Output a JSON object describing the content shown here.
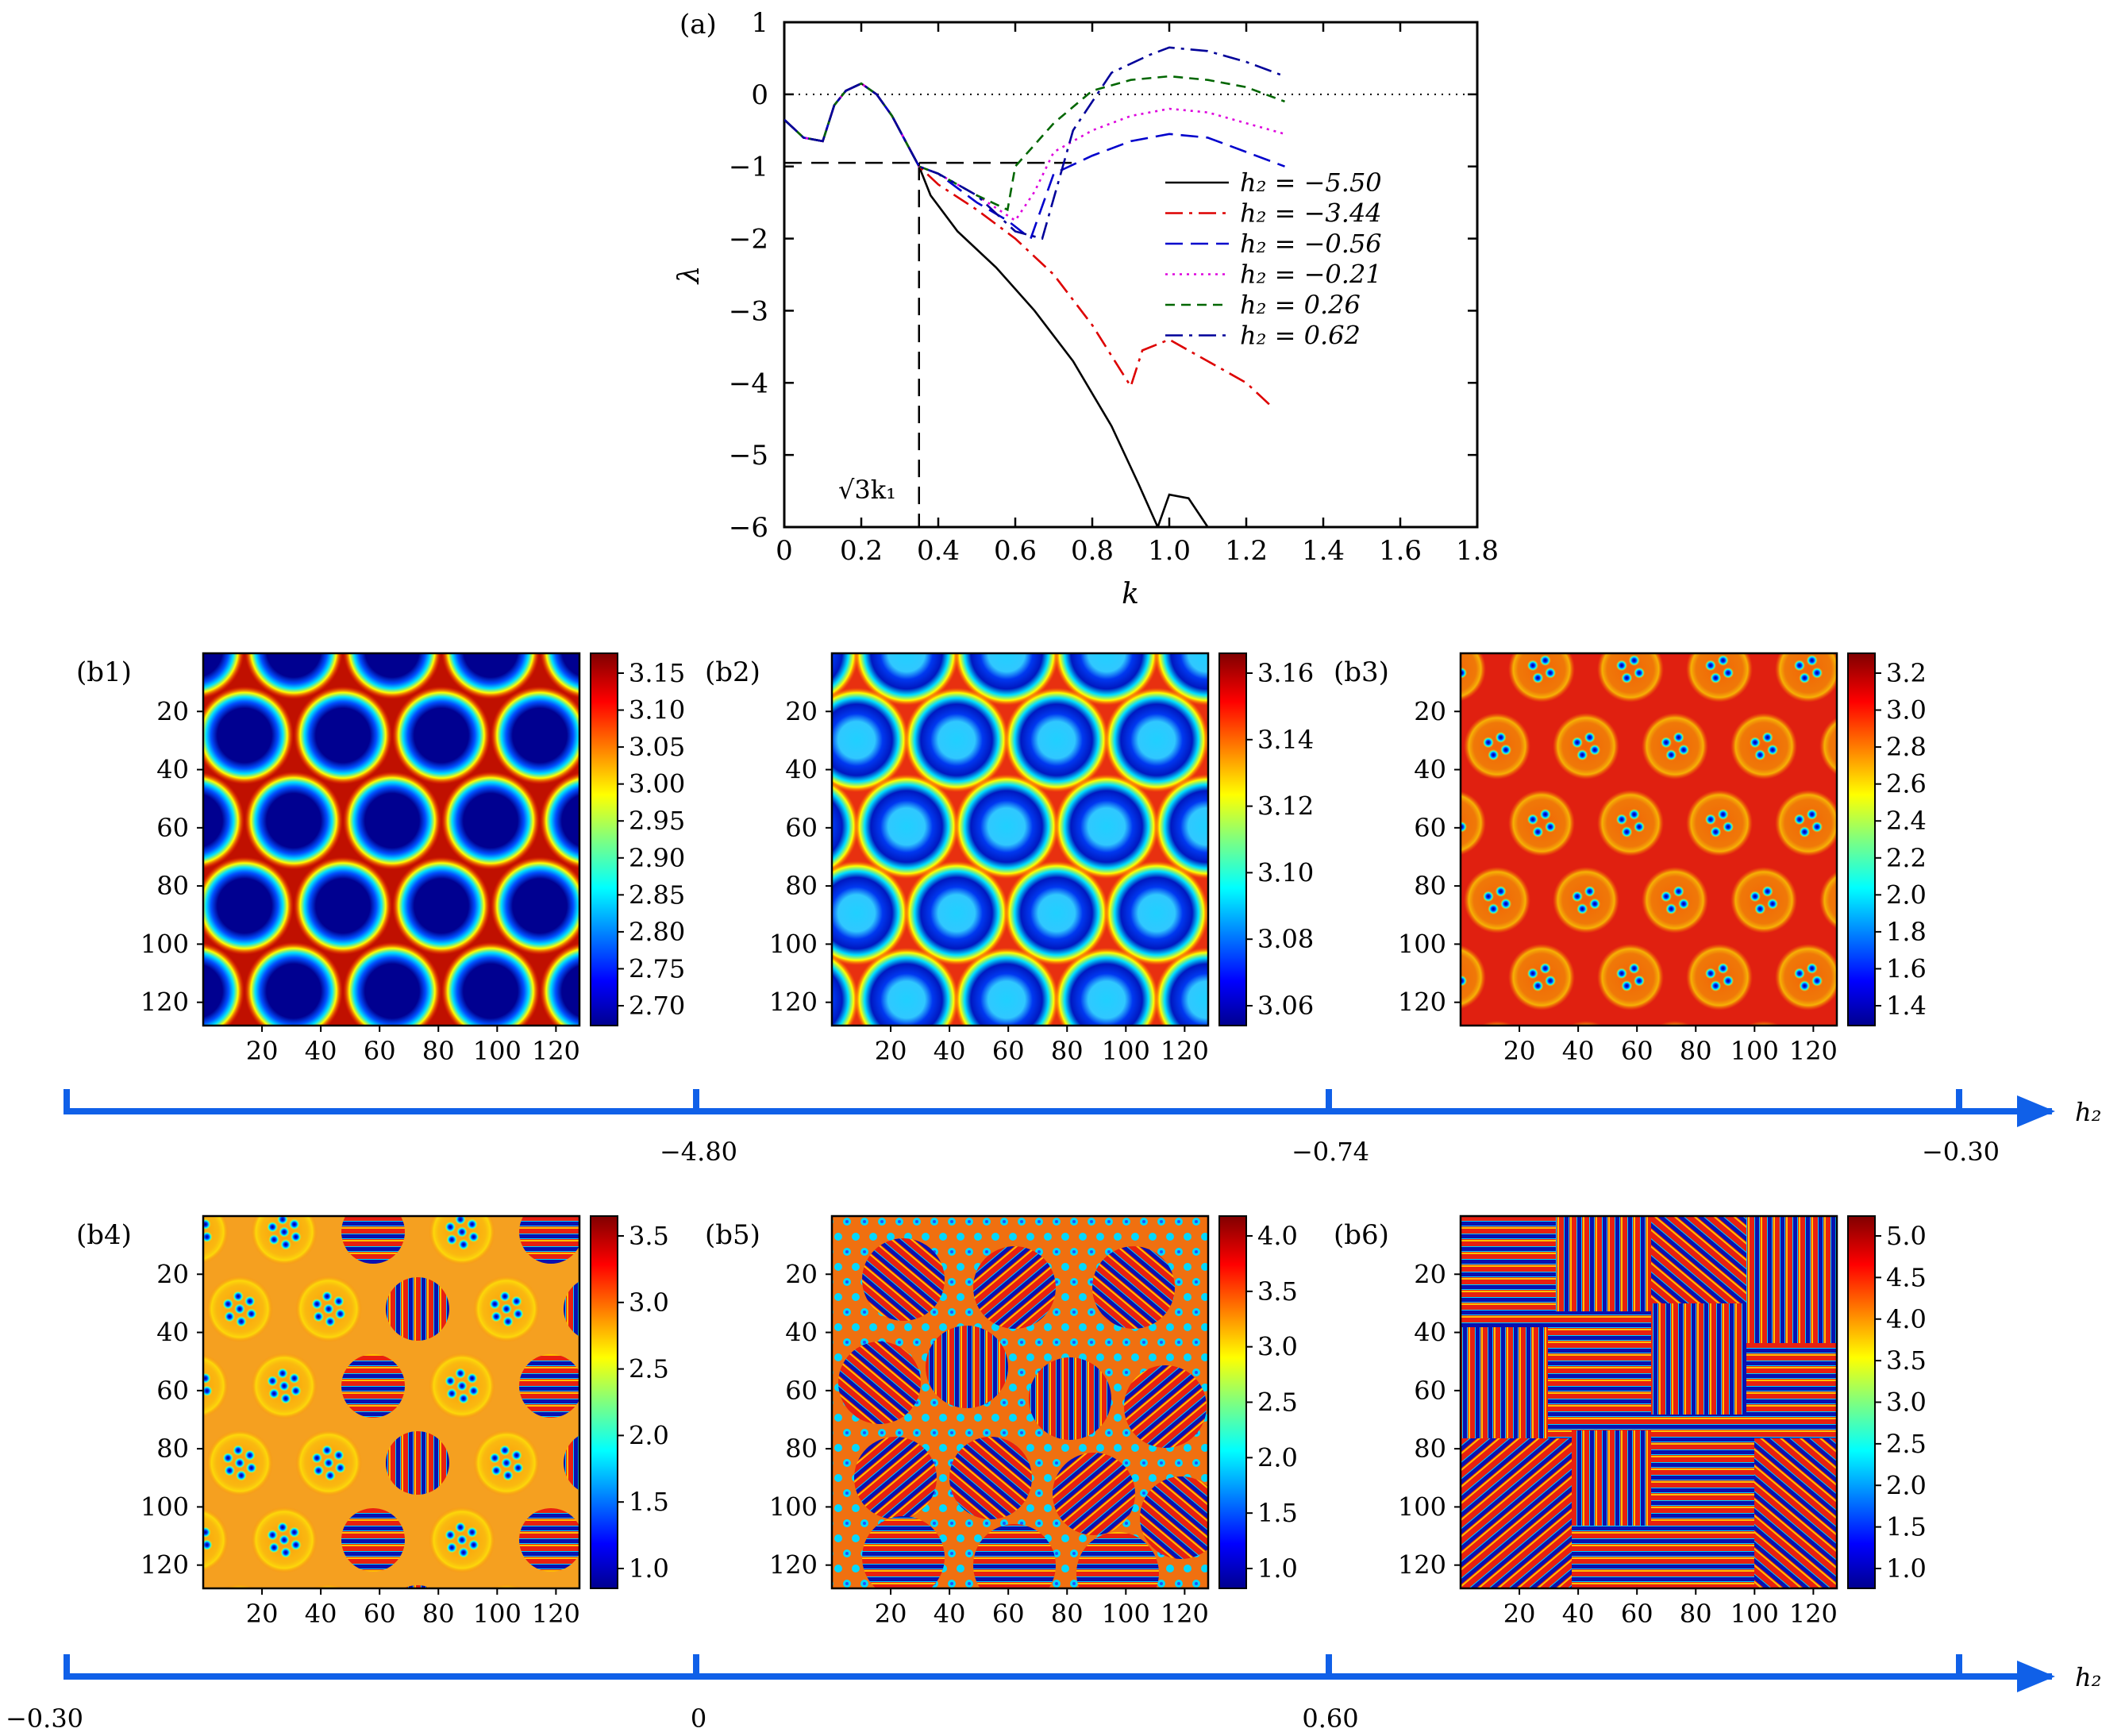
{
  "figure": {
    "panel_a": {
      "label": "(a)",
      "chart_data": {
        "type": "line",
        "xlabel": "k",
        "ylabel": "λ",
        "xlim": [
          0,
          1.8
        ],
        "ylim": [
          -6,
          1
        ],
        "xticks": [
          "0",
          "0.2",
          "0.4",
          "0.6",
          "0.8",
          "1.0",
          "1.2",
          "1.4",
          "1.6",
          "1.8"
        ],
        "yticks": [
          "1",
          "0",
          "−1",
          "−2",
          "−3",
          "−4",
          "−5",
          "−6"
        ],
        "annotation": "√3k₁",
        "reference_lines": {
          "horizontal_zero": 0,
          "horizontal_dashed": -0.95,
          "vertical_dashed_k": 0.35
        },
        "series": [
          {
            "name": "h₂ = −5.50",
            "color": "#000000",
            "dash": "solid",
            "x": [
              0,
              0.05,
              0.1,
              0.13,
              0.16,
              0.2,
              0.24,
              0.28,
              0.32,
              0.35,
              0.38,
              0.45,
              0.55,
              0.65,
              0.75,
              0.85,
              0.92,
              0.97,
              1.0,
              1.05,
              1.1
            ],
            "y": [
              -0.35,
              -0.6,
              -0.65,
              -0.15,
              0.05,
              0.15,
              0.0,
              -0.3,
              -0.7,
              -1.0,
              -1.4,
              -1.9,
              -2.4,
              -3.0,
              -3.7,
              -4.6,
              -5.4,
              -6.0,
              -5.55,
              -5.6,
              -6.0
            ]
          },
          {
            "name": "h₂ = −3.44",
            "color": "#dd0000",
            "dash": "dashdot",
            "x": [
              0,
              0.05,
              0.1,
              0.13,
              0.16,
              0.2,
              0.24,
              0.28,
              0.32,
              0.35,
              0.4,
              0.5,
              0.6,
              0.7,
              0.8,
              0.9,
              0.93,
              1.0,
              1.1,
              1.2,
              1.27
            ],
            "y": [
              -0.35,
              -0.6,
              -0.65,
              -0.15,
              0.05,
              0.15,
              0.0,
              -0.3,
              -0.7,
              -1.0,
              -1.25,
              -1.6,
              -2.0,
              -2.5,
              -3.2,
              -4.05,
              -3.55,
              -3.4,
              -3.7,
              -4.0,
              -4.35
            ]
          },
          {
            "name": "h₂ = −0.56",
            "color": "#0000cc",
            "dash": "longdash",
            "x": [
              0,
              0.05,
              0.1,
              0.13,
              0.16,
              0.2,
              0.24,
              0.28,
              0.32,
              0.35,
              0.4,
              0.5,
              0.58,
              0.64,
              0.7,
              0.8,
              0.9,
              1.0,
              1.1,
              1.2,
              1.3
            ],
            "y": [
              -0.35,
              -0.6,
              -0.65,
              -0.15,
              0.05,
              0.15,
              0.0,
              -0.3,
              -0.7,
              -1.0,
              -1.1,
              -1.5,
              -1.75,
              -2.0,
              -1.1,
              -0.85,
              -0.65,
              -0.55,
              -0.6,
              -0.8,
              -1.0
            ]
          },
          {
            "name": "h₂ = −0.21",
            "color": "#dd00dd",
            "dash": "dotted",
            "x": [
              0,
              0.05,
              0.1,
              0.13,
              0.16,
              0.2,
              0.24,
              0.28,
              0.32,
              0.35,
              0.4,
              0.5,
              0.6,
              0.65,
              0.7,
              0.8,
              0.9,
              1.0,
              1.1,
              1.2,
              1.3
            ],
            "y": [
              -0.35,
              -0.6,
              -0.65,
              -0.15,
              0.05,
              0.15,
              0.0,
              -0.3,
              -0.7,
              -1.0,
              -1.1,
              -1.4,
              -1.75,
              -1.35,
              -0.8,
              -0.5,
              -0.3,
              -0.2,
              -0.25,
              -0.4,
              -0.55
            ]
          },
          {
            "name": "h₂ = 0.26",
            "color": "#006600",
            "dash": "dashed",
            "x": [
              0,
              0.05,
              0.1,
              0.13,
              0.16,
              0.2,
              0.24,
              0.28,
              0.32,
              0.35,
              0.4,
              0.5,
              0.58,
              0.6,
              0.7,
              0.8,
              0.9,
              1.0,
              1.1,
              1.2,
              1.3
            ],
            "y": [
              -0.35,
              -0.6,
              -0.65,
              -0.15,
              0.05,
              0.15,
              0.0,
              -0.3,
              -0.7,
              -1.0,
              -1.1,
              -1.4,
              -1.6,
              -1.0,
              -0.4,
              0.05,
              0.2,
              0.25,
              0.2,
              0.1,
              -0.1
            ]
          },
          {
            "name": "h₂ = 0.62",
            "color": "#000099",
            "dash": "dashdot",
            "x": [
              0,
              0.05,
              0.1,
              0.13,
              0.16,
              0.2,
              0.24,
              0.28,
              0.32,
              0.35,
              0.4,
              0.5,
              0.6,
              0.67,
              0.75,
              0.85,
              0.95,
              1.0,
              1.1,
              1.2,
              1.3
            ],
            "y": [
              -0.35,
              -0.6,
              -0.65,
              -0.15,
              0.05,
              0.15,
              0.0,
              -0.3,
              -0.7,
              -1.0,
              -1.1,
              -1.4,
              -1.9,
              -2.0,
              -0.5,
              0.3,
              0.55,
              0.65,
              0.6,
              0.45,
              0.25
            ]
          }
        ]
      }
    },
    "maps_axis_ticks": [
      "20",
      "40",
      "60",
      "80",
      "100",
      "120"
    ],
    "heatmaps": [
      {
        "label": "(b1)",
        "pattern": "spots",
        "colorbar": [
          "3.15",
          "3.10",
          "3.05",
          "3.00",
          "2.95",
          "2.90",
          "2.85",
          "2.80",
          "2.75",
          "2.70"
        ]
      },
      {
        "label": "(b2)",
        "pattern": "rings",
        "colorbar": [
          "3.16",
          "3.14",
          "3.12",
          "3.10",
          "3.08",
          "3.06"
        ]
      },
      {
        "label": "(b3)",
        "pattern": "clusters",
        "colorbar": [
          "3.2",
          "3.0",
          "2.8",
          "2.6",
          "2.4",
          "2.2",
          "2.0",
          "1.8",
          "1.6",
          "1.4"
        ]
      },
      {
        "label": "(b4)",
        "pattern": "clusters-stripes",
        "colorbar": [
          "3.5",
          "3.0",
          "2.5",
          "2.0",
          "1.5",
          "1.0"
        ]
      },
      {
        "label": "(b5)",
        "pattern": "mixed",
        "colorbar": [
          "4.0",
          "3.5",
          "3.0",
          "2.5",
          "2.0",
          "1.5",
          "1.0"
        ]
      },
      {
        "label": "(b6)",
        "pattern": "labyrinth",
        "colorbar": [
          "5.0",
          "4.5",
          "4.0",
          "3.5",
          "3.0",
          "2.5",
          "2.0",
          "1.5",
          "1.0"
        ]
      }
    ],
    "axis_row1": {
      "label": "h₂",
      "ticks": [
        "−4.80",
        "−0.74",
        "−0.30"
      ]
    },
    "axis_row2": {
      "label": "h₂",
      "ticks": [
        "−0.30",
        "0",
        "0.60"
      ]
    },
    "colors": {
      "axis_arrow": "#1060e8",
      "dark_red": "#a00000",
      "red": "#e41a0c",
      "blue": "#0a0a9a"
    }
  }
}
